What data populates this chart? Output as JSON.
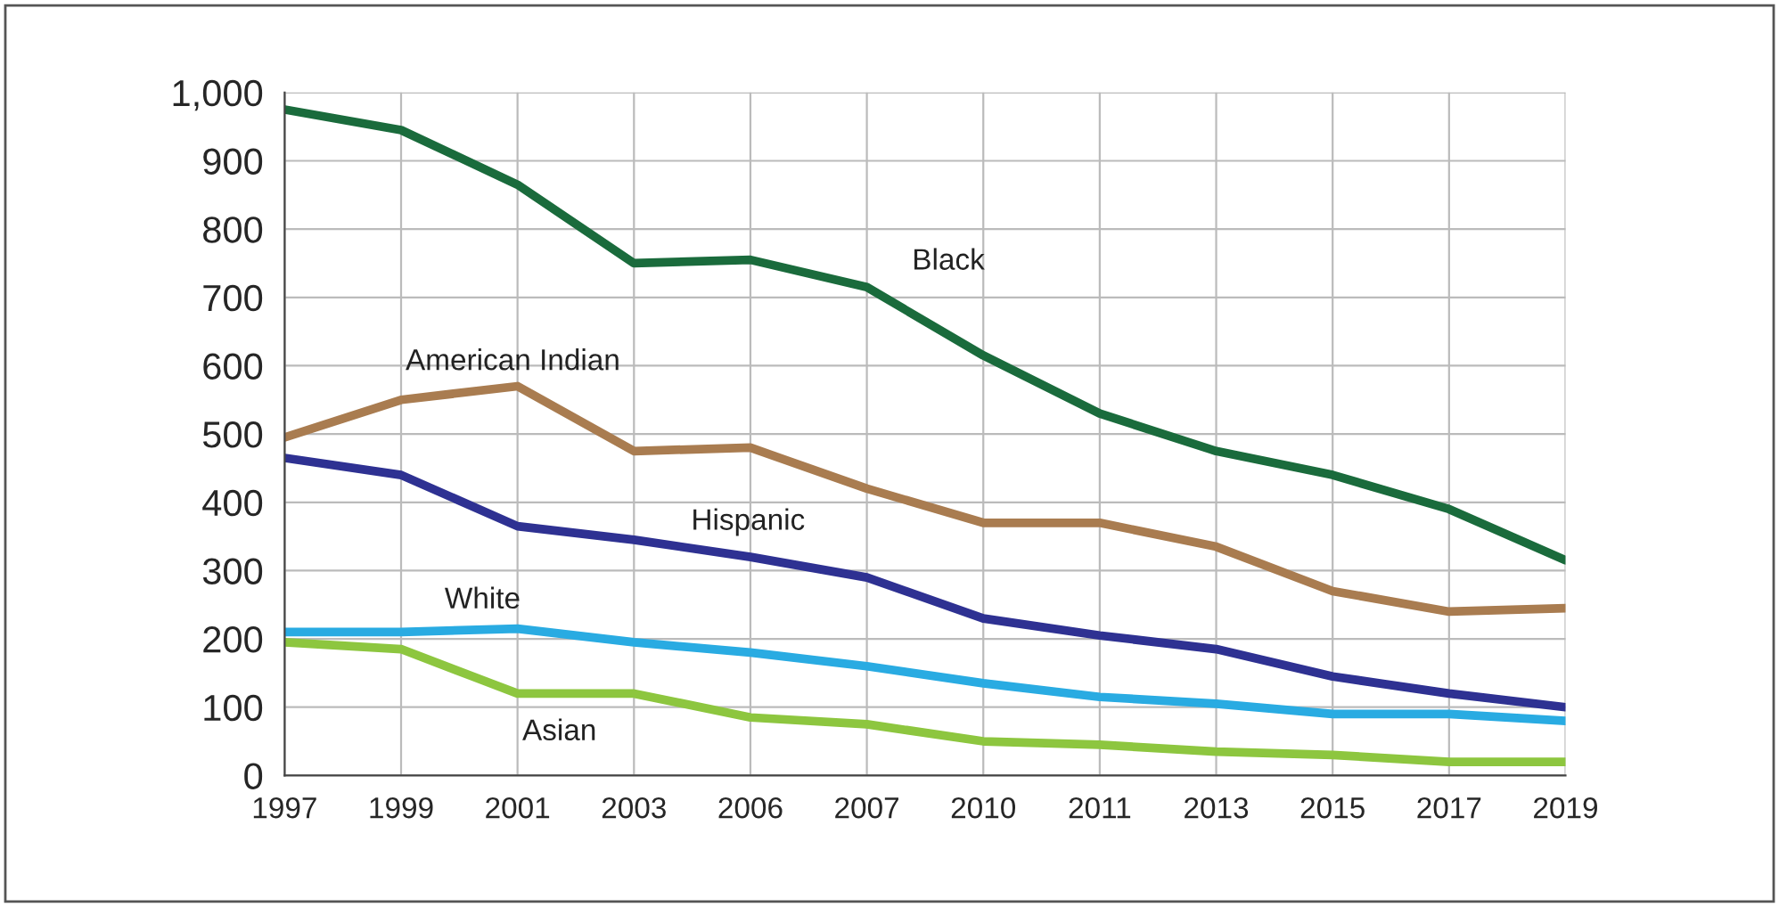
{
  "chart_data": {
    "type": "line",
    "categories": [
      "1997",
      "1999",
      "2001",
      "2003",
      "2006",
      "2007",
      "2010",
      "2011",
      "2013",
      "2015",
      "2017",
      "2019"
    ],
    "series": [
      {
        "name": "Black",
        "color": "#1a6b3c",
        "values": [
          975,
          945,
          865,
          750,
          755,
          715,
          615,
          530,
          475,
          440,
          390,
          315
        ]
      },
      {
        "name": "American Indian",
        "color": "#a97c50",
        "values": [
          495,
          550,
          570,
          475,
          480,
          420,
          370,
          370,
          335,
          270,
          240,
          245
        ]
      },
      {
        "name": "Hispanic",
        "color": "#2e3192",
        "values": [
          465,
          440,
          365,
          345,
          320,
          290,
          230,
          205,
          185,
          145,
          120,
          100
        ]
      },
      {
        "name": "White",
        "color": "#29abe2",
        "values": [
          210,
          210,
          215,
          195,
          180,
          160,
          135,
          115,
          105,
          90,
          90,
          80
        ]
      },
      {
        "name": "Asian",
        "color": "#8dc63f",
        "values": [
          195,
          185,
          120,
          120,
          85,
          75,
          50,
          45,
          35,
          30,
          20,
          20
        ]
      }
    ],
    "ylim": [
      0,
      1000
    ],
    "yticks": [
      0,
      100,
      200,
      300,
      400,
      500,
      600,
      700,
      800,
      900,
      {
        "value": 1000,
        "label": "1,000"
      }
    ],
    "grid": true,
    "legend": false,
    "marker": "none",
    "line_style": "solid"
  }
}
